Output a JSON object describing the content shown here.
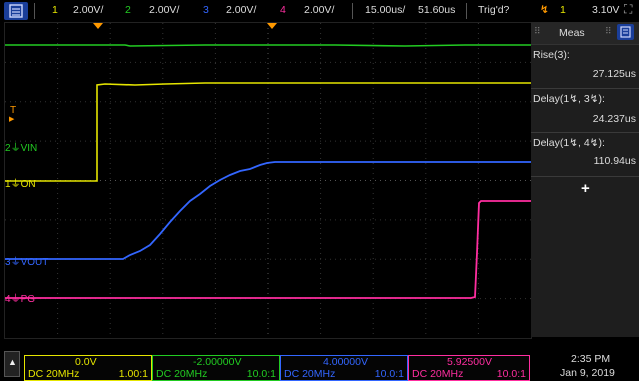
{
  "top": {
    "ch1_num": "1",
    "ch1_scale": "2.00V/",
    "ch2_num": "2",
    "ch2_scale": "2.00V/",
    "ch3_num": "3",
    "ch3_scale": "2.00V/",
    "ch4_num": "4",
    "ch4_scale": "2.00V/",
    "timebase": "15.00us/",
    "delay": "51.60us",
    "trigger_status": "Trig'd?",
    "trigger_source": "1",
    "trigger_level": "3.10V"
  },
  "markers": {
    "t": "T",
    "ch2_num": "2",
    "ch2_label": "VIN",
    "ch1_num": "1",
    "ch1_label": "ON",
    "ch3_num": "3",
    "ch3_label": "VOUT",
    "ch4_num": "4",
    "ch4_label": "PG"
  },
  "meas": {
    "title": "Meas",
    "items": [
      {
        "label": "Rise(3):",
        "value": "27.125us"
      },
      {
        "label": "Delay(1↯, 3↯):",
        "value": "24.237us"
      },
      {
        "label": "Delay(1↯, 4↯):",
        "value": "110.94us"
      }
    ],
    "add": "+"
  },
  "bottom": {
    "ch1": {
      "offset": "0.0V",
      "coupling": "DC 20MHz",
      "probe": "1.00:1"
    },
    "ch2": {
      "offset": "-2.00000V",
      "coupling": "DC 20MHz",
      "probe": "10.0:1"
    },
    "ch3": {
      "offset": "4.00000V",
      "coupling": "DC 20MHz",
      "probe": "10.0:1"
    },
    "ch4": {
      "offset": "5.92500V",
      "coupling": "DC 20MHz",
      "probe": "10.0:1"
    },
    "time": "2:35 PM",
    "date": "Jan 9, 2019"
  },
  "colors": {
    "ch1": "#e6e600",
    "ch2": "#22cc22",
    "ch3": "#3366ff",
    "ch4": "#ff2ea0",
    "accent": "#ff9900",
    "menu": "#1a3e9a"
  }
}
